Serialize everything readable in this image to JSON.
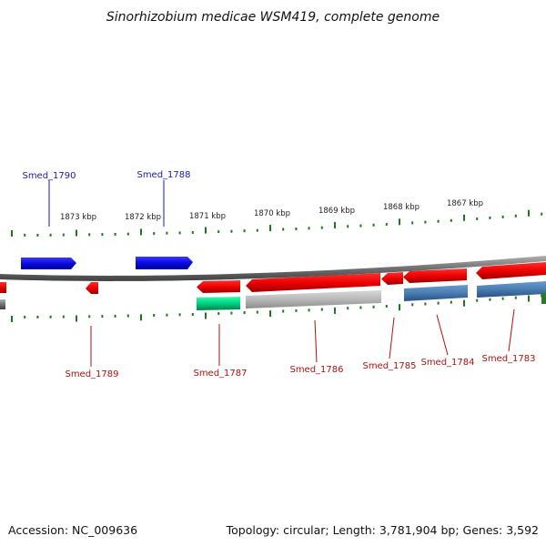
{
  "title": "Sinorhizobium medicae WSM419, complete genome",
  "footer": {
    "accession": "Accession: NC_009636",
    "summary": "Topology: circular; Length: 3,781,904 bp; Genes: 3,592"
  },
  "scale_labels": [
    "1873 kbp",
    "1872 kbp",
    "1871 kbp",
    "1870 kbp",
    "1869 kbp",
    "1868 kbp",
    "1867 kbp"
  ],
  "gene_labels_top": [
    "Smed_1790",
    "Smed_1788"
  ],
  "gene_labels_bottom": [
    "Smed_1789",
    "Smed_1787",
    "Smed_1786",
    "Smed_1785",
    "Smed_1784",
    "Smed_1783"
  ],
  "colors": {
    "forward_gene": "#1010e0",
    "reverse_gene": "#ee0000",
    "rna_gene": "#00dd88",
    "pseudo_gene": "#b8b8b8",
    "steel_gene": "#4a7db0",
    "tick": "#1a7a1a",
    "backbone": "#808080"
  }
}
